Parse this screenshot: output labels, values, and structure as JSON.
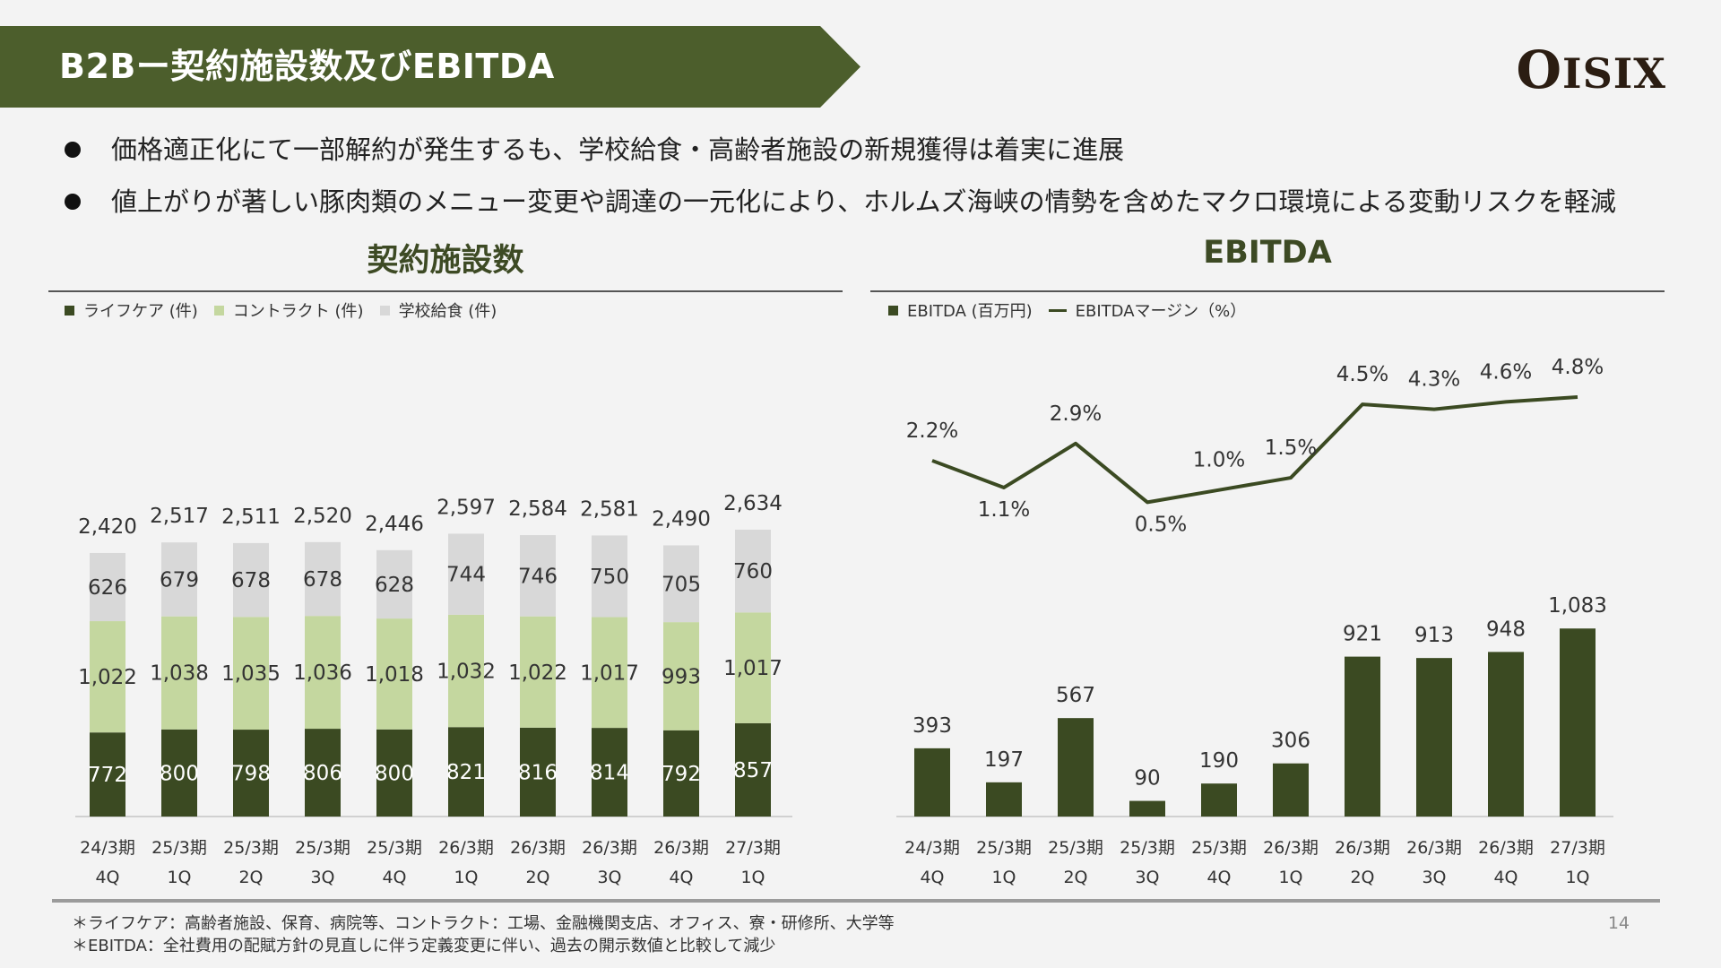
{
  "header": {
    "title": "B2Bー契約施設数及びEBITDA",
    "logo_main": "O",
    "logo_rest": "ISIX"
  },
  "bullets": [
    "価格適正化にて一部解約が発生するも、学校給食・高齢者施設の新規獲得は着実に進展",
    "値上がりが著しい豚肉類のメニュー変更や調達の一元化により、ホルムズ海峡の情勢を含めたマクロ環境による変動リスクを軽減"
  ],
  "left_section": {
    "title": "契約施設数"
  },
  "right_section": {
    "title": "EBITDA"
  },
  "colors": {
    "dark": "#3b4a22",
    "light": "#c4d79f",
    "grey": "#d8d8d8",
    "banner": "#4c5e2c"
  },
  "chart_data": [
    {
      "type": "bar",
      "stacked": true,
      "title": "契約施設数",
      "legend_position": "top-left",
      "categories": [
        "24/3期\n4Q",
        "25/3期\n1Q",
        "25/3期\n2Q",
        "25/3期\n3Q",
        "25/3期\n4Q",
        "26/3期\n1Q",
        "26/3期\n2Q",
        "26/3期\n3Q",
        "26/3期\n4Q",
        "27/3期\n1Q"
      ],
      "category_lines": [
        [
          "24/3期",
          "4Q"
        ],
        [
          "25/3期",
          "1Q"
        ],
        [
          "25/3期",
          "2Q"
        ],
        [
          "25/3期",
          "3Q"
        ],
        [
          "25/3期",
          "4Q"
        ],
        [
          "26/3期",
          "1Q"
        ],
        [
          "26/3期",
          "2Q"
        ],
        [
          "26/3期",
          "3Q"
        ],
        [
          "26/3期",
          "4Q"
        ],
        [
          "27/3期",
          "1Q"
        ]
      ],
      "series": [
        {
          "name": "ライフケア (件)",
          "color": "#3b4a22",
          "values": [
            772,
            800,
            798,
            806,
            800,
            821,
            816,
            814,
            792,
            857
          ]
        },
        {
          "name": "コントラクト (件)",
          "color": "#c4d79f",
          "values": [
            1022,
            1038,
            1035,
            1036,
            1018,
            1032,
            1022,
            1017,
            993,
            1017
          ]
        },
        {
          "name": "学校給食 (件)",
          "color": "#d8d8d8",
          "values": [
            626,
            679,
            678,
            678,
            628,
            744,
            746,
            750,
            705,
            760
          ]
        }
      ],
      "value_labels": [
        [
          "772",
          "800",
          "798",
          "806",
          "800",
          "821",
          "816",
          "814",
          "792",
          "857"
        ],
        [
          "1,022",
          "1,038",
          "1,035",
          "1,036",
          "1,018",
          "1,032",
          "1,022",
          "1,017",
          "993",
          "1,017"
        ],
        [
          "626",
          "679",
          "678",
          "678",
          "628",
          "744",
          "746",
          "750",
          "705",
          "760"
        ]
      ],
      "totals": [
        2420,
        2517,
        2511,
        2520,
        2446,
        2597,
        2584,
        2581,
        2490,
        2634
      ],
      "total_labels": [
        "2,420",
        "2,517",
        "2,511",
        "2,520",
        "2,446",
        "2,597",
        "2,584",
        "2,581",
        "2,490",
        "2,634"
      ],
      "ylim": [
        0,
        2800
      ]
    },
    {
      "type": "bar",
      "title": "EBITDA",
      "legend_position": "top-left",
      "categories": [
        "24/3期\n4Q",
        "25/3期\n1Q",
        "25/3期\n2Q",
        "25/3期\n3Q",
        "25/3期\n4Q",
        "26/3期\n1Q",
        "26/3期\n2Q",
        "26/3期\n3Q",
        "26/3期\n4Q",
        "27/3期\n1Q"
      ],
      "category_lines": [
        [
          "24/3期",
          "4Q"
        ],
        [
          "25/3期",
          "1Q"
        ],
        [
          "25/3期",
          "2Q"
        ],
        [
          "25/3期",
          "3Q"
        ],
        [
          "25/3期",
          "4Q"
        ],
        [
          "26/3期",
          "1Q"
        ],
        [
          "26/3期",
          "2Q"
        ],
        [
          "26/3期",
          "3Q"
        ],
        [
          "26/3期",
          "4Q"
        ],
        [
          "27/3期",
          "1Q"
        ]
      ],
      "series": [
        {
          "name": "EBITDA (百万円)",
          "type": "bar",
          "color": "#3b4a22",
          "values": [
            393,
            197,
            567,
            90,
            190,
            306,
            921,
            913,
            948,
            1083
          ]
        },
        {
          "name": "EBITDAマージン（%）",
          "type": "line",
          "color": "#3b4a22",
          "values": [
            2.2,
            1.1,
            2.9,
            0.5,
            1.0,
            1.5,
            4.5,
            4.3,
            4.6,
            4.8
          ]
        }
      ],
      "bar_labels": [
        "393",
        "197",
        "567",
        "90",
        "190",
        "306",
        "921",
        "913",
        "948",
        "1,083"
      ],
      "line_labels": [
        "2.2%",
        "1.1%",
        "2.9%",
        "0.5%",
        "1.0%",
        "1.5%",
        "4.5%",
        "4.3%",
        "4.6%",
        "4.8%"
      ],
      "ylim": [
        0,
        2500
      ],
      "y2lim": [
        -8,
        6
      ]
    }
  ],
  "footnotes": [
    "＊ライフケア：高齢者施設、保育、病院等、コントラクト：工場、金融機関支店、オフィス、寮・研修所、大学等",
    "＊EBITDA：全社費用の配賦方針の見直しに伴う定義変更に伴い、過去の開示数値と比較して減少"
  ],
  "page_number": "14"
}
